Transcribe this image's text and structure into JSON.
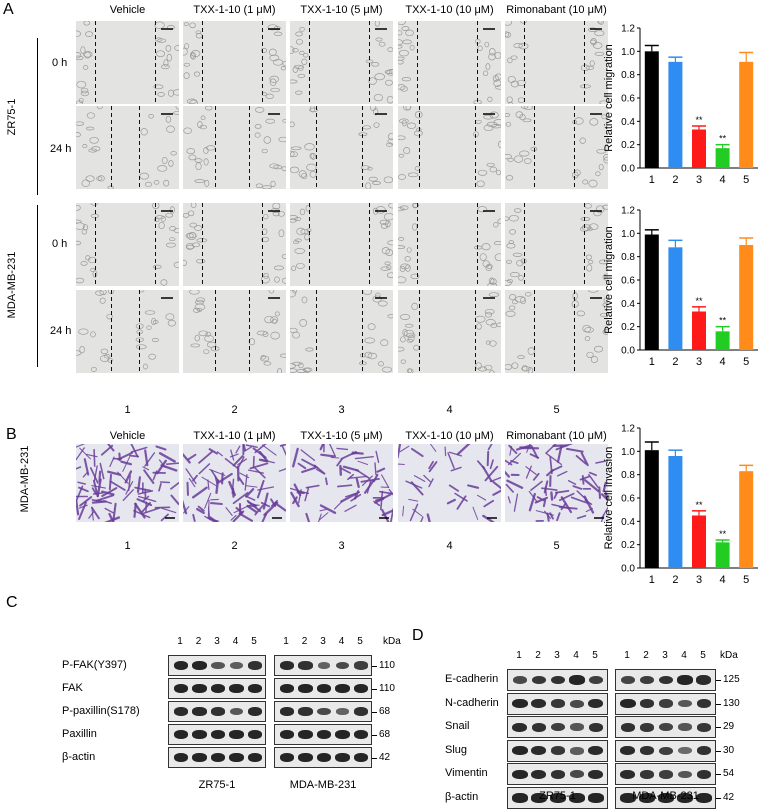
{
  "panels": {
    "A": "A",
    "B": "B",
    "C": "C",
    "D": "D"
  },
  "treatments": [
    "Vehicle",
    "TXX-1-10 (1 μM)",
    "TXX-1-10 (5 μM)",
    "TXX-1-10 (10 μM)",
    "Rimonabant (10 μM)"
  ],
  "lane_numbers": [
    "1",
    "2",
    "3",
    "4",
    "5"
  ],
  "panel_a": {
    "cell_lines": [
      "ZR75-1",
      "MDA-MB-231"
    ],
    "timepoints": [
      "0 h",
      "24 h"
    ]
  },
  "panel_b": {
    "cell_line": "MDA-MB-231"
  },
  "panel_c": {
    "kda_label": "kDa",
    "proteins": [
      "P-FAK(Y397)",
      "FAK",
      "P-paxillin(S178)",
      "Paxillin",
      "β-actin"
    ],
    "kda": [
      "110",
      "110",
      "68",
      "68",
      "42"
    ],
    "groups": [
      "ZR75-1",
      "MDA-MB-231"
    ]
  },
  "panel_d": {
    "kda_label": "kDa",
    "proteins": [
      "E-cadherin",
      "N-cadherin",
      "Snail",
      "Slug",
      "Vimentin",
      "β-actin"
    ],
    "kda": [
      "125",
      "130",
      "29",
      "30",
      "54",
      "42"
    ],
    "groups": [
      "ZR75-1",
      "MDA-MB-231"
    ]
  },
  "colors": {
    "bars": [
      "#000000",
      "#2f8cf0",
      "#ff1a1a",
      "#22cc22",
      "#ff8c1a"
    ],
    "micro_bg": "#e3e3e1",
    "invasion_bg": "#e6e7ee",
    "invasion_cells": "#6a3d9a"
  },
  "chart_data": [
    {
      "type": "bar",
      "title": "",
      "xlabel": "",
      "ylabel": "Relative cell migration",
      "categories": [
        "1",
        "2",
        "3",
        "4",
        "5"
      ],
      "values": [
        1.0,
        0.91,
        0.33,
        0.17,
        0.91
      ],
      "errors": [
        0.05,
        0.04,
        0.03,
        0.03,
        0.08
      ],
      "annotations": [
        "",
        "",
        "**",
        "**",
        ""
      ],
      "ylim": [
        0,
        1.2
      ],
      "yticks": [
        "0.0",
        "0.2",
        "0.4",
        "0.6",
        "0.8",
        "1.0",
        "1.2"
      ]
    },
    {
      "type": "bar",
      "title": "",
      "xlabel": "",
      "ylabel": "Relative cell migration",
      "categories": [
        "1",
        "2",
        "3",
        "4",
        "5"
      ],
      "values": [
        0.99,
        0.88,
        0.33,
        0.16,
        0.9
      ],
      "errors": [
        0.04,
        0.06,
        0.04,
        0.04,
        0.06
      ],
      "annotations": [
        "",
        "",
        "**",
        "**",
        ""
      ],
      "ylim": [
        0,
        1.2
      ],
      "yticks": [
        "0.0",
        "0.2",
        "0.4",
        "0.6",
        "0.8",
        "1.0",
        "1.2"
      ]
    },
    {
      "type": "bar",
      "title": "",
      "xlabel": "",
      "ylabel": "Relative cell invasion",
      "categories": [
        "1",
        "2",
        "3",
        "4",
        "5"
      ],
      "values": [
        1.01,
        0.96,
        0.45,
        0.22,
        0.83
      ],
      "errors": [
        0.07,
        0.05,
        0.04,
        0.02,
        0.05
      ],
      "annotations": [
        "",
        "",
        "**",
        "**",
        ""
      ],
      "ylim": [
        0,
        1.2
      ],
      "yticks": [
        "0.0",
        "0.2",
        "0.4",
        "0.6",
        "0.8",
        "1.0",
        "1.2"
      ]
    }
  ]
}
